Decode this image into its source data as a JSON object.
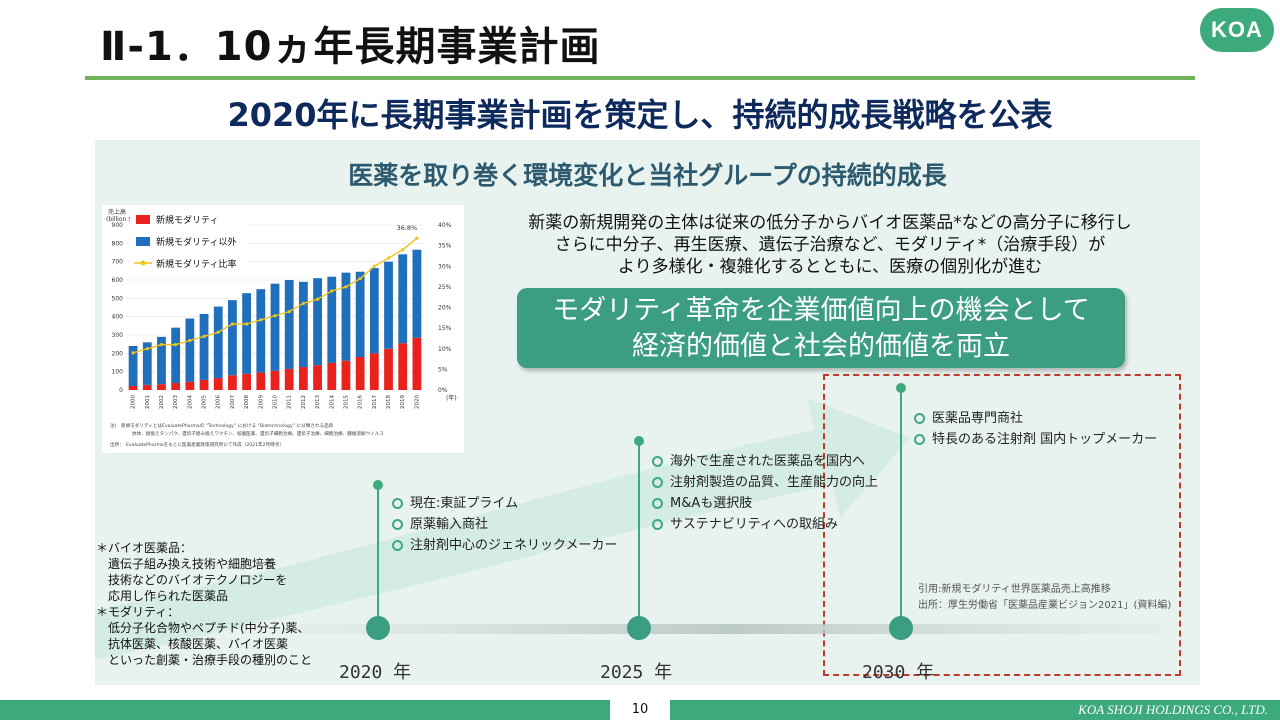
{
  "header": {
    "title": "Ⅱ-1．10ヵ年長期事業計画",
    "logo": "KOA",
    "subtitle": "2020年に長期事業計画を策定し、持続的成長戦略を公表"
  },
  "panel": {
    "title": "医薬を取り巻く環境変化と当社グループの持続的成長",
    "description": [
      "新薬の新規開発の主体は従来の低分子からバイオ医薬品*などの高分子に移行し",
      "さらに中分子、再生医療、遺伝子治療など、モダリティ*（治療手段）が",
      "より多様化・複雑化するとともに、医療の個別化が進む"
    ],
    "banner": [
      "モダリティ革命を企業価値向上の機会として",
      "経済的価値と社会的価値を両立"
    ]
  },
  "timeline": {
    "milestones": [
      {
        "year": "2020 年",
        "items": [
          "現在:東証プライム",
          "原薬輸入商社",
          "注射剤中心のジェネリックメーカー"
        ]
      },
      {
        "year": "2025 年",
        "items": [
          "海外で生産された医薬品を国内へ",
          "注射剤製造の品質、生産能力の向上",
          "M&Aも選択肢",
          "サステナビリティへの取組み"
        ]
      },
      {
        "year": "2030 年",
        "items": [
          "医薬品専門商社",
          "特長のある注射剤 国内トップメーカー"
        ]
      }
    ],
    "citation": [
      "引用:新規モダリティ世界医薬品売上高推移",
      "出所：厚生労働省「医薬品産業ビジョン2021」(資料編)"
    ]
  },
  "footnotes": [
    "＊バイオ医薬品：",
    "　遺伝子組み換え技術や細胞培養",
    "　技術などのバイオテクノロジーを",
    "　応用し作られた医薬品",
    "＊モダリティ：",
    "　低分子化合物やペプチド(中分子)薬、",
    "　抗体医薬、核酸医薬、バイオ医薬",
    "　といった創薬・治療手段の種別のこと"
  ],
  "footer": {
    "page": "10",
    "company": "KOA SHOJI HOLDINGS CO., LTD."
  },
  "colors": {
    "accent_green": "#3daa7e",
    "title_rule": "#6fb35a",
    "navy": "#0e2a5c",
    "bar_new": "#e8231e",
    "bar_other": "#1f6fbd",
    "ratio_line": "#f2c318",
    "dashed_box": "#c0392b"
  },
  "chart_data": {
    "type": "bar",
    "ylabel": "売上高\n(billion $)",
    "y2label": "(年)",
    "categories": [
      "2000",
      "2001",
      "2002",
      "2003",
      "2004",
      "2005",
      "2006",
      "2007",
      "2008",
      "2009",
      "2010",
      "2011",
      "2012",
      "2013",
      "2014",
      "2015",
      "2016",
      "2017",
      "2018",
      "2019",
      "2020"
    ],
    "series": [
      {
        "name": "新規モダリティ",
        "values": [
          22,
          28,
          32,
          38,
          45,
          55,
          65,
          80,
          88,
          95,
          105,
          115,
          125,
          135,
          148,
          160,
          180,
          200,
          225,
          255,
          285
        ]
      },
      {
        "name": "新規モダリティ以外",
        "values": [
          218,
          232,
          258,
          302,
          345,
          360,
          390,
          410,
          440,
          455,
          475,
          485,
          465,
          475,
          470,
          480,
          465,
          465,
          475,
          485,
          480
        ]
      },
      {
        "name": "新規モダリティ比率",
        "axis": "right",
        "values": [
          9,
          10,
          11,
          11,
          12,
          13,
          14,
          16,
          16,
          17,
          18,
          19,
          21,
          22,
          24,
          25,
          27,
          30,
          32,
          34,
          36.8
        ]
      }
    ],
    "ylim": [
      0,
      900
    ],
    "yticks": [
      0,
      100,
      200,
      300,
      400,
      500,
      600,
      700,
      800,
      900
    ],
    "y2lim": [
      0,
      40
    ],
    "y2ticks": [
      "0%",
      "5%",
      "10%",
      "15%",
      "20%",
      "25%",
      "30%",
      "35%",
      "40%"
    ],
    "annotation": "36.8%",
    "legend": "top-left",
    "notes": [
      "注)　新規モダリティとはEvaluatePharmaの “Technology” における “Biotechnology” に分類される品目",
      "抗体、組換えタンパク、遺伝子組み換えワクチン、核酸医薬、遺伝子細胞治療、遺伝子治療、細胞治療、腫瘍溶解ウイルス",
      "出所：　EvaluatePharmaをもとに医薬産業政策研究所にて作成（2021年2月時点）"
    ]
  }
}
